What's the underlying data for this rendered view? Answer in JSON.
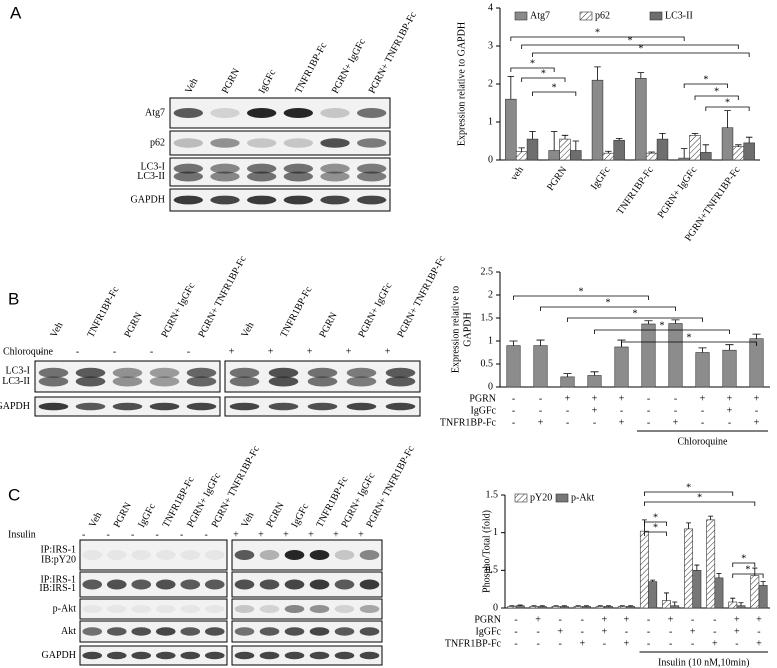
{
  "panels": [
    "A",
    "B",
    "C"
  ],
  "blots": {
    "A": {
      "lanes": [
        "Veh",
        "PGRN",
        "IgGFc",
        "TNFR1BP-Fc",
        "PGRN+ IgGFc",
        "PGRN+ TNFR1BP-Fc"
      ],
      "rows": [
        [
          "Atg7"
        ],
        [
          "p62"
        ],
        [
          "LC3-I",
          "LC3-II"
        ],
        [
          "GAPDH"
        ]
      ]
    },
    "B": {
      "lanes": [
        "Veh",
        "TNFR1BP-Fc",
        "PGRN",
        "PGRN+ IgGFc",
        "PGRN+ TNFR1BP-Fc",
        "Veh",
        "TNFR1BP-Fc",
        "PGRN",
        "PGRN+ IgGFc",
        "PGRN+ TNFR1BP-Fc"
      ],
      "treatment": "Chloroquine",
      "signs": [
        "-",
        "-",
        "-",
        "-",
        "-",
        "+",
        "+",
        "+",
        "+",
        "+"
      ],
      "rows": [
        [
          "LC3-I",
          "LC3-II"
        ],
        [
          "GAPDH"
        ]
      ]
    },
    "C": {
      "lanes": [
        "Veh",
        "PGRN",
        "IgGFc",
        "TNFR1BP-Fc",
        "PGRN+ IgGFc",
        "PGRN+ TNFR1BP-Fc",
        "Veh",
        "PGRN",
        "IgGFc",
        "TNFR1BP-Fc",
        "PGRN+ IgGFc",
        "PGRN+ TNFR1BP-Fc"
      ],
      "treatment": "Insulin",
      "signs": [
        "-",
        "-",
        "-",
        "-",
        "-",
        "-",
        "+",
        "+",
        "+",
        "+",
        "+",
        "+"
      ],
      "rows": [
        [
          "IP:IRS-1",
          "IB:pY20"
        ],
        [
          "IP:IRS-1",
          "IB:IRS-1"
        ],
        [
          "p-Akt"
        ],
        [
          "Akt"
        ],
        [
          "GAPDH"
        ]
      ]
    }
  },
  "chart_data": [
    {
      "type": "bar",
      "y_label": "Expression relative to GAPDH",
      "categories": [
        "veh",
        "PGRN",
        "IgGFc",
        "TNFR1BP-Fc",
        "PGRN+ IgGFc",
        "PGRN+TNFR1BP-Fc"
      ],
      "series": [
        {
          "name": "Atg7",
          "color": "#8a8a8a",
          "values": [
            1.6,
            0.25,
            2.1,
            2.15,
            0.05,
            0.85
          ],
          "errors": [
            0.6,
            0.5,
            0.35,
            0.15,
            0.25,
            0.45
          ]
        },
        {
          "name": "p62",
          "color": "#ffffff",
          "hatch": true,
          "values": [
            0.22,
            0.55,
            0.18,
            0.18,
            0.65,
            0.35
          ],
          "errors": [
            0.1,
            0.1,
            0.05,
            0.03,
            0.05,
            0.05
          ]
        },
        {
          "name": "LC3-II",
          "color": "#6e6e6e",
          "values": [
            0.55,
            0.25,
            0.52,
            0.55,
            0.2,
            0.45
          ],
          "errors": [
            0.2,
            0.25,
            0.05,
            0.15,
            0.2,
            0.15
          ]
        }
      ],
      "ylim": [
        0,
        4
      ],
      "yticks": [
        0,
        1,
        2,
        3,
        4
      ],
      "legend": "top",
      "significance": [
        "*",
        "*",
        "*",
        "*",
        "*",
        "*",
        "*",
        "*",
        "*"
      ]
    },
    {
      "type": "bar",
      "y_label": [
        "Expression relative to",
        "GAPDH"
      ],
      "color": "#8c8c8c",
      "values": [
        0.9,
        0.9,
        0.22,
        0.25,
        0.87,
        1.37,
        1.38,
        0.75,
        0.8,
        1.05
      ],
      "errors": [
        0.1,
        0.12,
        0.07,
        0.08,
        0.15,
        0.07,
        0.08,
        0.1,
        0.12,
        0.1
      ],
      "ylim": [
        0,
        2.5
      ],
      "yticks": [
        0,
        0.5,
        1,
        1.5,
        2,
        2.5
      ],
      "conditions": [
        {
          "name": "PGRN",
          "signs": [
            "-",
            "-",
            "+",
            "+",
            "+",
            "-",
            "-",
            "+",
            "+",
            "+"
          ]
        },
        {
          "name": "IgGFc",
          "signs": [
            "-",
            "-",
            "-",
            "+",
            "-",
            "-",
            "-",
            "-",
            "+",
            "-"
          ]
        },
        {
          "name": "TNFR1BP-Fc",
          "signs": [
            "-",
            "+",
            "-",
            "-",
            "+",
            "-",
            "+",
            "-",
            "-",
            "+"
          ]
        }
      ],
      "group_label": "Chloroquine",
      "significance": [
        "*",
        "*",
        "*",
        "*",
        "*"
      ]
    },
    {
      "type": "bar",
      "y_label": "Phospho/Total (fold)",
      "series": [
        {
          "name": "pY20",
          "color": "#ffffff",
          "hatch": true,
          "values": [
            0.02,
            0.02,
            0.02,
            0.02,
            0.02,
            0.02,
            1.02,
            0.1,
            1.05,
            1.17,
            0.08,
            0.43
          ],
          "errors": [
            0.01,
            0.01,
            0.01,
            0.01,
            0.01,
            0.01,
            0.15,
            0.1,
            0.08,
            0.05,
            0.05,
            0.1
          ]
        },
        {
          "name": "p-Akt",
          "color": "#777777",
          "values": [
            0.03,
            0.02,
            0.02,
            0.02,
            0.02,
            0.02,
            0.35,
            0.03,
            0.5,
            0.4,
            0.03,
            0.3
          ],
          "errors": [
            0.01,
            0.01,
            0.01,
            0.01,
            0.01,
            0.01,
            0.02,
            0.05,
            0.07,
            0.06,
            0.04,
            0.05
          ]
        }
      ],
      "ylim": [
        0,
        1.5
      ],
      "yticks": [
        0,
        0.5,
        1,
        1.5
      ],
      "legend": "top-left",
      "conditions": [
        {
          "name": "PGRN",
          "signs": [
            "-",
            "+",
            "-",
            "-",
            "+",
            "+",
            "-",
            "+",
            "-",
            "-",
            "+",
            "+"
          ]
        },
        {
          "name": "IgGFc",
          "signs": [
            "-",
            "-",
            "+",
            "-",
            "+",
            "-",
            "-",
            "-",
            "+",
            "-",
            "+",
            "-"
          ]
        },
        {
          "name": "TNFR1BP-Fc",
          "signs": [
            "-",
            "-",
            "-",
            "+",
            "-",
            "+",
            "-",
            "-",
            "-",
            "+",
            "-",
            "+"
          ]
        }
      ],
      "group_label": "Insulin (10 nM,10min)",
      "significance": [
        "*",
        "*",
        "*",
        "*",
        "*",
        "*"
      ]
    }
  ]
}
